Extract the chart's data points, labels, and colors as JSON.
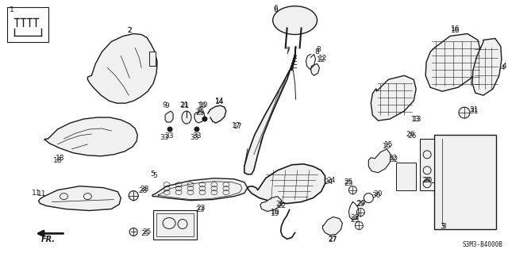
{
  "diagram_code": "S3M3-B4000B",
  "background_color": "#ffffff",
  "line_color": "#1a1a1a",
  "fig_width": 6.4,
  "fig_height": 3.19,
  "dpi": 100
}
